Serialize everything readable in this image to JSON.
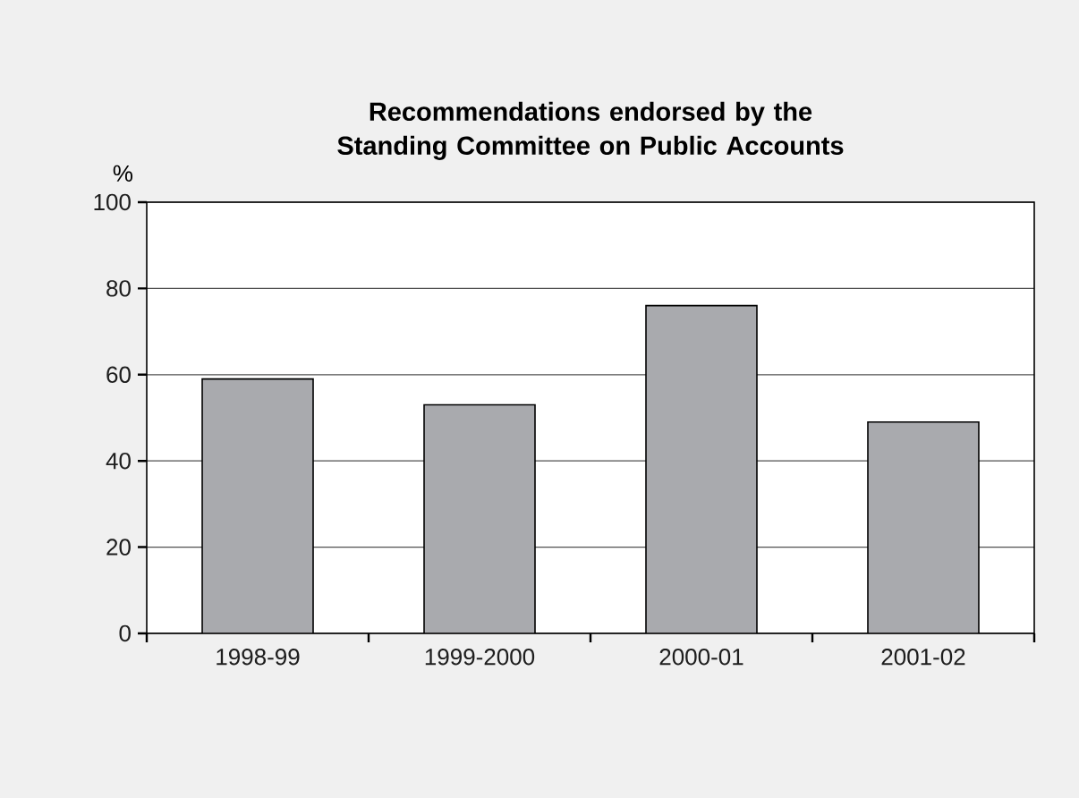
{
  "chart_data": {
    "type": "bar",
    "title": "Recommendations endorsed by the Standing Committee on Public Accounts",
    "ylabel": "%",
    "categories": [
      "1998-99",
      "1999-2000",
      "2000-01",
      "2001-02"
    ],
    "values": [
      59,
      53,
      76,
      49
    ],
    "color": "#a9aaae",
    "ylim": [
      0,
      100
    ],
    "yticks": [
      0,
      20,
      40,
      60,
      80,
      100
    ],
    "grid": "y"
  }
}
